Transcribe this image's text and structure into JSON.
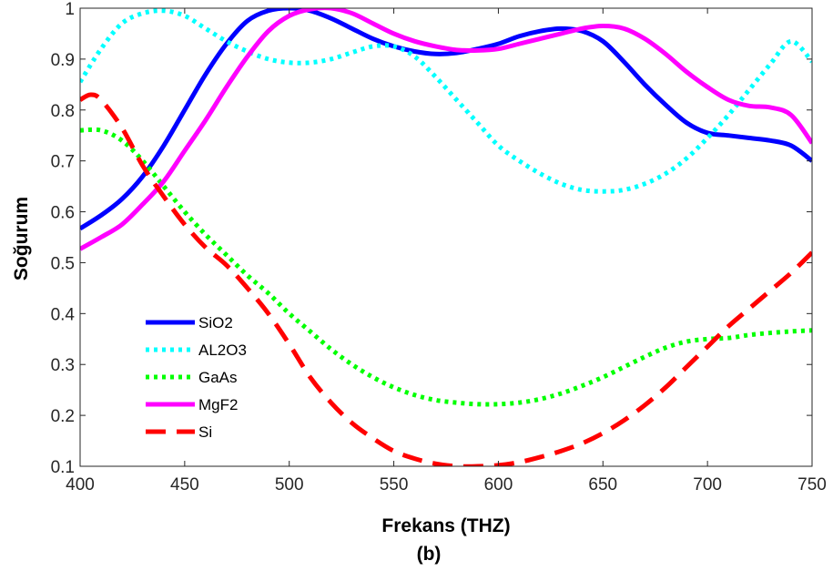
{
  "chart_data": {
    "type": "line",
    "title": "",
    "xlabel": "Frekans (THZ)",
    "ylabel": "Soğurum",
    "caption": "(b)",
    "xlim": [
      400,
      750
    ],
    "ylim": [
      0.1,
      1
    ],
    "xticks": [
      400,
      450,
      500,
      550,
      600,
      650,
      700,
      750
    ],
    "yticks": [
      0.1,
      0.2,
      0.3,
      0.4,
      0.5,
      0.6,
      0.7,
      0.8,
      0.9,
      1
    ],
    "ytick_labels": [
      "0.1",
      "0.2",
      "0.3",
      "0.4",
      "0.5",
      "0.6",
      "0.7",
      "0.8",
      "0.9",
      "1"
    ],
    "grid": false,
    "legend_position": "lower-left",
    "series": [
      {
        "name": "SiO2",
        "color": "#0000ff",
        "style": "solid",
        "x": [
          400,
          410,
          420,
          430,
          440,
          450,
          460,
          470,
          480,
          490,
          500,
          510,
          520,
          530,
          540,
          550,
          560,
          570,
          580,
          590,
          600,
          610,
          620,
          630,
          640,
          650,
          660,
          670,
          680,
          690,
          700,
          710,
          720,
          730,
          740,
          750
        ],
        "y": [
          0.567,
          0.593,
          0.625,
          0.67,
          0.73,
          0.8,
          0.87,
          0.93,
          0.975,
          0.995,
          1.0,
          0.995,
          0.98,
          0.96,
          0.94,
          0.925,
          0.915,
          0.91,
          0.912,
          0.92,
          0.93,
          0.945,
          0.955,
          0.96,
          0.955,
          0.935,
          0.895,
          0.85,
          0.81,
          0.775,
          0.755,
          0.75,
          0.745,
          0.74,
          0.73,
          0.7
        ]
      },
      {
        "name": "AL2O3",
        "color": "#00ffff",
        "style": "dotted",
        "x": [
          400,
          410,
          420,
          430,
          440,
          450,
          460,
          470,
          480,
          490,
          500,
          510,
          520,
          530,
          540,
          550,
          560,
          570,
          580,
          590,
          600,
          610,
          620,
          630,
          640,
          650,
          660,
          670,
          680,
          690,
          700,
          710,
          720,
          730,
          740,
          750
        ],
        "y": [
          0.855,
          0.92,
          0.97,
          0.99,
          0.995,
          0.985,
          0.96,
          0.935,
          0.915,
          0.9,
          0.893,
          0.893,
          0.9,
          0.913,
          0.925,
          0.925,
          0.905,
          0.865,
          0.82,
          0.775,
          0.73,
          0.7,
          0.675,
          0.655,
          0.643,
          0.64,
          0.643,
          0.655,
          0.675,
          0.705,
          0.745,
          0.79,
          0.84,
          0.89,
          0.935,
          0.895
        ]
      },
      {
        "name": "GaAs",
        "color": "#00ff00",
        "style": "dotted",
        "x": [
          400,
          410,
          420,
          430,
          440,
          450,
          460,
          470,
          480,
          490,
          500,
          510,
          520,
          530,
          540,
          550,
          560,
          570,
          580,
          590,
          600,
          610,
          620,
          630,
          640,
          650,
          660,
          670,
          680,
          690,
          700,
          710,
          720,
          730,
          740,
          750
        ],
        "y": [
          0.76,
          0.76,
          0.74,
          0.7,
          0.65,
          0.6,
          0.555,
          0.515,
          0.475,
          0.44,
          0.4,
          0.365,
          0.33,
          0.3,
          0.275,
          0.255,
          0.24,
          0.23,
          0.225,
          0.222,
          0.222,
          0.225,
          0.232,
          0.243,
          0.258,
          0.275,
          0.295,
          0.315,
          0.333,
          0.345,
          0.35,
          0.352,
          0.358,
          0.362,
          0.365,
          0.367
        ]
      },
      {
        "name": "MgF2",
        "color": "#ff00ff",
        "style": "solid",
        "x": [
          400,
          410,
          420,
          430,
          440,
          450,
          460,
          470,
          480,
          490,
          500,
          510,
          520,
          530,
          540,
          550,
          560,
          570,
          580,
          590,
          600,
          610,
          620,
          630,
          640,
          650,
          660,
          670,
          680,
          690,
          700,
          710,
          720,
          730,
          740,
          750
        ],
        "y": [
          0.527,
          0.55,
          0.575,
          0.615,
          0.66,
          0.72,
          0.78,
          0.845,
          0.905,
          0.955,
          0.985,
          0.998,
          1.0,
          0.99,
          0.97,
          0.95,
          0.935,
          0.925,
          0.918,
          0.917,
          0.92,
          0.93,
          0.94,
          0.95,
          0.96,
          0.965,
          0.96,
          0.94,
          0.91,
          0.875,
          0.845,
          0.82,
          0.808,
          0.805,
          0.79,
          0.735
        ]
      },
      {
        "name": "Si",
        "color": "#ff0000",
        "style": "dashed",
        "x": [
          400,
          405,
          410,
          420,
          430,
          440,
          450,
          460,
          470,
          480,
          490,
          500,
          510,
          520,
          530,
          540,
          550,
          560,
          570,
          580,
          590,
          600,
          610,
          620,
          630,
          640,
          650,
          660,
          670,
          680,
          690,
          700,
          710,
          720,
          730,
          740,
          750
        ],
        "y": [
          0.82,
          0.83,
          0.82,
          0.765,
          0.69,
          0.63,
          0.575,
          0.53,
          0.495,
          0.45,
          0.4,
          0.34,
          0.275,
          0.225,
          0.185,
          0.155,
          0.13,
          0.115,
          0.105,
          0.1,
          0.1,
          0.102,
          0.108,
          0.118,
          0.13,
          0.145,
          0.165,
          0.19,
          0.22,
          0.255,
          0.295,
          0.335,
          0.375,
          0.41,
          0.445,
          0.48,
          0.52
        ]
      }
    ]
  }
}
